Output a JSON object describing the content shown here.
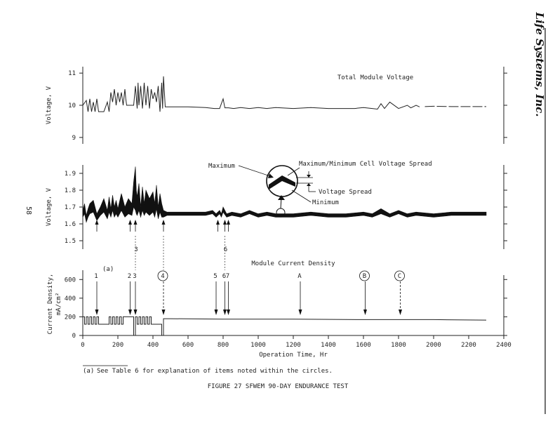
{
  "page": {
    "page_number": "58",
    "brand": "Life Systems, Inc.",
    "footnote_marker": "(a)",
    "footnote_text": "See Table 6 for explanation of items noted within the circles.",
    "figure_caption": "FIGURE 27  SFWEM 90-DAY ENDURANCE TEST"
  },
  "chart_data": [
    {
      "type": "line",
      "title": "Total Module Voltage",
      "ylabel": "Voltage, V",
      "ylim": [
        8.8,
        11.2
      ],
      "yticks": [
        "9",
        "10",
        "11"
      ],
      "xlim": [
        0,
        2400
      ],
      "series": [
        {
          "x": [
            0,
            20,
            30,
            40,
            50,
            60,
            70,
            80,
            90,
            100,
            120,
            140,
            150,
            160,
            170,
            180,
            190,
            200,
            210,
            220,
            230,
            240,
            245,
            250,
            255,
            260,
            290,
            300,
            310,
            315,
            320,
            330,
            340,
            350,
            360,
            370,
            380,
            390,
            400,
            410,
            420,
            430,
            440,
            450,
            455,
            460,
            470,
            500,
            600,
            700,
            750,
            780,
            800,
            810,
            830,
            860,
            900,
            950,
            1000,
            1050,
            1100,
            1200,
            1300,
            1400,
            1500,
            1550,
            1600,
            1650,
            1680,
            1700,
            1720,
            1750,
            1800,
            1850,
            1870,
            1900,
            1920
          ],
          "values": [
            10.0,
            10.15,
            9.8,
            10.2,
            9.8,
            10.1,
            9.8,
            10.2,
            9.8,
            9.8,
            9.8,
            10.1,
            9.8,
            10.4,
            10.1,
            10.5,
            10.0,
            10.4,
            10.1,
            10.4,
            10.0,
            10.5,
            10.2,
            10.0,
            10.0,
            10.0,
            10.0,
            10.6,
            9.9,
            10.7,
            10.0,
            10.6,
            9.9,
            10.7,
            10.0,
            10.6,
            9.9,
            10.5,
            10.2,
            10.4,
            10.1,
            10.6,
            9.8,
            10.7,
            9.9,
            10.9,
            9.95,
            9.95,
            9.95,
            9.93,
            9.9,
            9.9,
            10.2,
            9.92,
            9.92,
            9.9,
            9.93,
            9.9,
            9.93,
            9.9,
            9.93,
            9.9,
            9.93,
            9.9,
            9.9,
            9.9,
            9.93,
            9.9,
            9.88,
            10.05,
            9.9,
            10.1,
            9.9,
            10.0,
            9.92,
            10.0,
            9.95
          ]
        },
        {
          "x": [
            1950,
            2000,
            2100,
            2200,
            2300
          ],
          "values": [
            9.96,
            9.97,
            9.96,
            9.96,
            9.96
          ]
        }
      ]
    },
    {
      "type": "line",
      "ylabel": "Voltage, V",
      "ylim": [
        1.45,
        1.95
      ],
      "yticks": [
        "1.5",
        "1.6",
        "1.7",
        "1.8",
        "1.9"
      ],
      "xlim": [
        0,
        2400
      ],
      "annotations": {
        "maximum": "Maximum",
        "minimum": "Minimum",
        "spread_title": "Maximum/Minimum Cell Voltage Spread",
        "voltage_spread": "Voltage Spread"
      },
      "event_arrows_x": [
        80,
        270,
        300,
        460,
        770,
        810,
        830
      ],
      "series": [
        {
          "name": "Maximum",
          "x": [
            0,
            10,
            20,
            30,
            40,
            60,
            80,
            100,
            120,
            140,
            150,
            160,
            170,
            180,
            190,
            200,
            220,
            240,
            260,
            280,
            290,
            300,
            305,
            310,
            320,
            330,
            340,
            350,
            360,
            380,
            400,
            410,
            420,
            430,
            440,
            450,
            460,
            480,
            500,
            600,
            700,
            740,
            760,
            780,
            790,
            800,
            820,
            850,
            900,
            950,
            1000,
            1050,
            1100,
            1200,
            1300,
            1400,
            1500,
            1600,
            1650,
            1700,
            1750,
            1800,
            1850,
            1900,
            2000,
            2100,
            2200,
            2300
          ],
          "values": [
            1.68,
            1.72,
            1.65,
            1.69,
            1.72,
            1.74,
            1.66,
            1.7,
            1.75,
            1.68,
            1.76,
            1.69,
            1.77,
            1.7,
            1.74,
            1.69,
            1.78,
            1.7,
            1.75,
            1.72,
            1.85,
            1.94,
            1.8,
            1.76,
            1.84,
            1.7,
            1.82,
            1.72,
            1.8,
            1.75,
            1.79,
            1.72,
            1.83,
            1.7,
            1.78,
            1.72,
            1.68,
            1.67,
            1.67,
            1.67,
            1.67,
            1.68,
            1.66,
            1.68,
            1.66,
            1.7,
            1.66,
            1.67,
            1.66,
            1.68,
            1.66,
            1.67,
            1.66,
            1.66,
            1.67,
            1.66,
            1.66,
            1.67,
            1.66,
            1.69,
            1.66,
            1.68,
            1.66,
            1.67,
            1.66,
            1.67,
            1.67,
            1.67
          ]
        },
        {
          "name": "Minimum",
          "x": [
            0,
            10,
            20,
            30,
            40,
            60,
            80,
            100,
            120,
            140,
            150,
            160,
            170,
            180,
            190,
            200,
            220,
            240,
            260,
            280,
            290,
            300,
            305,
            310,
            320,
            330,
            340,
            350,
            360,
            380,
            400,
            410,
            420,
            430,
            440,
            450,
            460,
            480,
            500,
            600,
            700,
            740,
            760,
            780,
            790,
            800,
            820,
            850,
            900,
            950,
            1000,
            1050,
            1100,
            1200,
            1300,
            1400,
            1500,
            1600,
            1650,
            1700,
            1750,
            1800,
            1850,
            1900,
            2000,
            2100,
            2200,
            2300
          ],
          "values": [
            1.64,
            1.66,
            1.61,
            1.64,
            1.66,
            1.67,
            1.62,
            1.65,
            1.67,
            1.63,
            1.67,
            1.64,
            1.68,
            1.64,
            1.66,
            1.64,
            1.68,
            1.64,
            1.66,
            1.65,
            1.7,
            1.68,
            1.66,
            1.65,
            1.68,
            1.64,
            1.68,
            1.65,
            1.67,
            1.65,
            1.67,
            1.64,
            1.69,
            1.63,
            1.67,
            1.64,
            1.64,
            1.65,
            1.65,
            1.65,
            1.65,
            1.66,
            1.64,
            1.66,
            1.64,
            1.67,
            1.64,
            1.65,
            1.64,
            1.66,
            1.64,
            1.65,
            1.64,
            1.64,
            1.65,
            1.64,
            1.64,
            1.65,
            1.64,
            1.66,
            1.64,
            1.66,
            1.64,
            1.65,
            1.64,
            1.65,
            1.65,
            1.65
          ]
        }
      ]
    },
    {
      "type": "line",
      "title": "Module Current Density",
      "ylabel": "Current Density,",
      "ylabel_unit": "mA/cm²",
      "xlabel": "Operation Time, Hr",
      "ylim": [
        0,
        700
      ],
      "yticks": [
        "0",
        "200",
        "400",
        "600"
      ],
      "xlim": [
        0,
        2400
      ],
      "xticks": [
        "0",
        "200",
        "400",
        "600",
        "800",
        "1000",
        "1200",
        "1400",
        "1600",
        "1800",
        "2000",
        "2200",
        "2400"
      ],
      "events": [
        {
          "label": "1",
          "x": 80,
          "circled": false
        },
        {
          "label": "2",
          "x": 270,
          "circled": false
        },
        {
          "label": "3",
          "x": 300,
          "circled": false
        },
        {
          "label": "4",
          "x": 460,
          "circled": true
        },
        {
          "label": "5",
          "x": 760,
          "circled": false
        },
        {
          "label": "6",
          "x": 810,
          "circled": false
        },
        {
          "label": "7",
          "x": 830,
          "circled": false
        },
        {
          "label": "A",
          "x": 1240,
          "circled": false
        },
        {
          "label": "B",
          "x": 1610,
          "circled": true
        },
        {
          "label": "C",
          "x": 1810,
          "circled": true
        }
      ],
      "series": [
        {
          "x": [
            0,
            10,
            10,
            20,
            20,
            30,
            30,
            40,
            40,
            50,
            50,
            60,
            60,
            70,
            70,
            80,
            80,
            90,
            90,
            100,
            100,
            150,
            150,
            160,
            160,
            170,
            170,
            180,
            180,
            190,
            190,
            200,
            200,
            210,
            210,
            220,
            220,
            230,
            230,
            290,
            290,
            300,
            300,
            310,
            310,
            320,
            320,
            330,
            330,
            340,
            340,
            350,
            350,
            360,
            360,
            370,
            370,
            380,
            380,
            390,
            390,
            400,
            400,
            450,
            450,
            460,
            460,
            500,
            800,
            1200,
            1600,
            2000,
            2300
          ],
          "values": [
            200,
            200,
            120,
            120,
            200,
            200,
            120,
            120,
            200,
            200,
            120,
            120,
            200,
            200,
            120,
            120,
            200,
            200,
            120,
            120,
            120,
            120,
            200,
            200,
            120,
            120,
            200,
            200,
            120,
            120,
            200,
            200,
            120,
            120,
            200,
            200,
            120,
            120,
            200,
            200,
            0,
            0,
            200,
            200,
            120,
            120,
            200,
            200,
            120,
            120,
            200,
            200,
            120,
            120,
            200,
            200,
            120,
            120,
            200,
            200,
            120,
            120,
            120,
            120,
            0,
            0,
            180,
            180,
            175,
            175,
            170,
            170,
            165
          ]
        }
      ]
    }
  ]
}
